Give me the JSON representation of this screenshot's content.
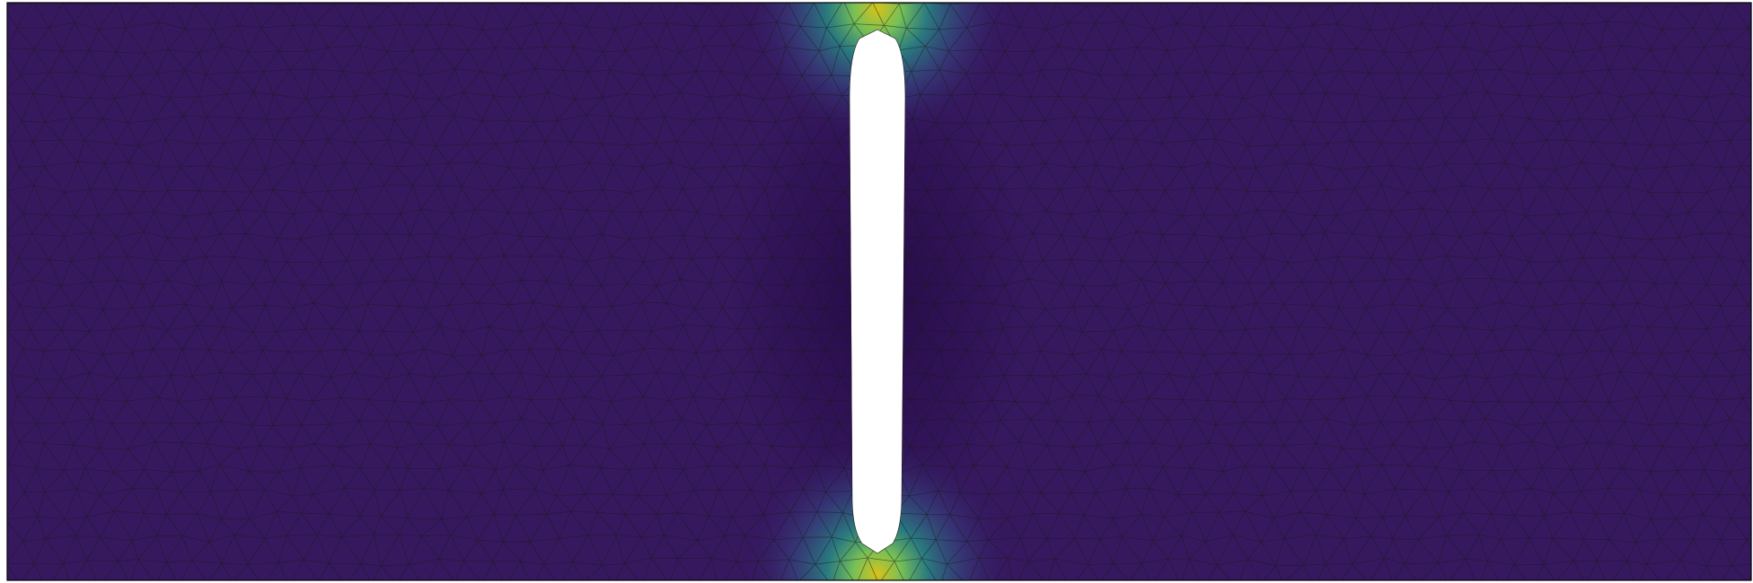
{
  "figure": {
    "kind": "finite element mesh with scalar field colouring around a slot-shaped hole",
    "colormap": "viridis",
    "colors": {
      "background": "#ffffff",
      "hole": "#ffffff",
      "mesh_line": "#1a1a1a",
      "border": "#000000",
      "field_low": "#2c0f4e",
      "field_base": "#36185f",
      "field_mid": "#3b528b",
      "field_teal": "#21918c",
      "field_green": "#5ec962",
      "field_high": "#bdb41a"
    }
  }
}
